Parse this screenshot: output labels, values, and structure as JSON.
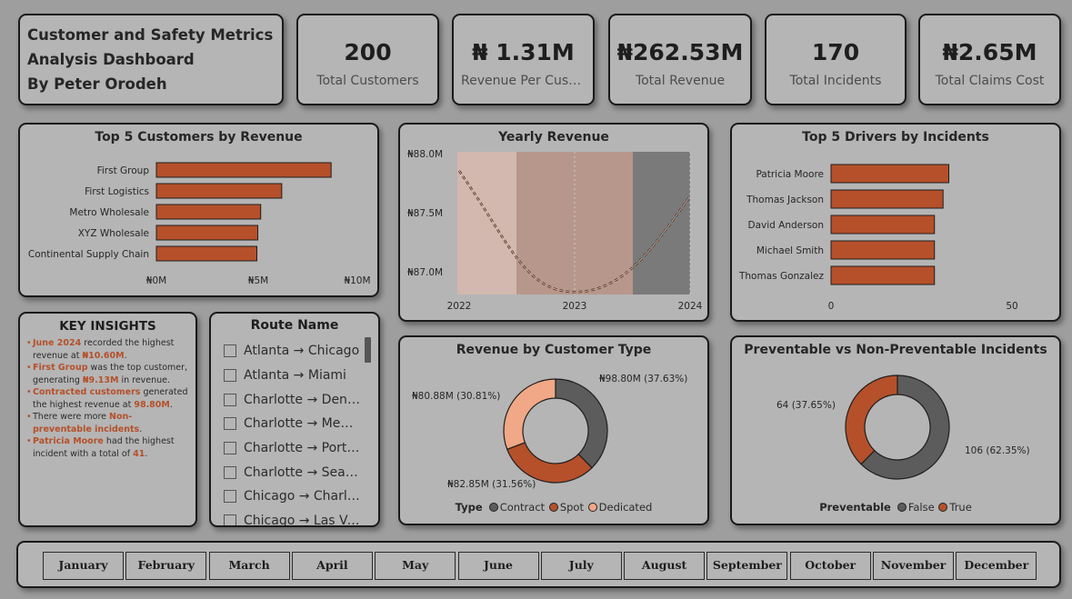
{
  "header": {
    "title_line1": "Customer and Safety Metrics",
    "title_line2": "Analysis Dashboard",
    "title_line3": "By Peter Orodeh"
  },
  "kpis": [
    {
      "value": "200",
      "label": "Total Customers"
    },
    {
      "value": "₦ 1.31M",
      "label": "Revenue Per Custo..."
    },
    {
      "value": "₦262.53M",
      "label": "Total Revenue"
    },
    {
      "value": "170",
      "label": "Total Incidents"
    },
    {
      "value": "₦2.65M",
      "label": "Total Claims Cost"
    }
  ],
  "top_customers": {
    "title": "Top 5 Customers by Revenue",
    "ticks": [
      "₦0M",
      "₦5M",
      "₦10M"
    ]
  },
  "yearly": {
    "title": "Yearly Revenue",
    "yticks": [
      "₦88.0M",
      "₦87.5M",
      "₦87.0M"
    ],
    "xticks": [
      "2022",
      "2023",
      "2024"
    ]
  },
  "top_drivers": {
    "title": "Top 5 Drivers by Incidents",
    "ticks": [
      "0",
      "50"
    ]
  },
  "insights": {
    "title": "KEY INSIGHTS",
    "items": [
      {
        "hl1": "June 2024",
        "t1": " recorded the highest revenue at ",
        "hl2": "₦10.60M",
        "t2": "."
      },
      {
        "hl1": "First Group",
        "t1": " was the top customer, generating ",
        "hl2": "₦9.13M",
        "t2": " in revenue."
      },
      {
        "hl1": "Contracted customers",
        "t1": " generated the highest revenue at ",
        "hl2": "98.80M",
        "t2": "."
      },
      {
        "hl1": "",
        "t1": "There were more ",
        "hl2": "Non-preventable incidents",
        "t2": "."
      },
      {
        "hl1": "Patricia Moore",
        "t1": " had the highest incident with a total of ",
        "hl2": "41",
        "t2": "."
      }
    ]
  },
  "routes": {
    "title": "Route Name",
    "items": [
      "Atlanta → Chicago",
      "Atlanta → Miami",
      "Charlotte → Denver",
      "Charlotte → Memp...",
      "Charlotte → Portland",
      "Charlotte → Seattle",
      "Chicago → Charlotte",
      "Chicago → Las Vegas"
    ]
  },
  "revenue_type": {
    "title": "Revenue by Customer Type",
    "legend_title": "Type",
    "labels": [
      "₦98.80M (37.63%)",
      "₦82.85M (31.56%)",
      "₦80.88M (30.81%)"
    ]
  },
  "preventable": {
    "title": "Preventable vs Non-Preventable Incidents",
    "legend_title": "Preventable",
    "labels": [
      "106 (62.35%)",
      "64 (37.65%)"
    ]
  },
  "months": [
    "January",
    "February",
    "March",
    "April",
    "May",
    "June",
    "July",
    "August",
    "September",
    "October",
    "November",
    "December"
  ],
  "colors": {
    "accent": "#b5502a",
    "dark": "#5c5c5c",
    "light": "#f0a886",
    "card": "#b5b5b5",
    "page": "#9e9e9e"
  },
  "chart_data": [
    {
      "type": "bar",
      "orientation": "horizontal",
      "title": "Top 5 Customers by Revenue",
      "categories": [
        "First Group",
        "First Logistics",
        "Metro Wholesale",
        "XYZ Wholesale",
        "Continental Supply Chain"
      ],
      "values": [
        9.13,
        6.55,
        5.45,
        5.3,
        5.25
      ],
      "xlim": [
        0,
        10.5
      ],
      "unit": "₦M"
    },
    {
      "type": "line",
      "title": "Yearly Revenue",
      "x": [
        "2022",
        "2023",
        "2024"
      ],
      "values": [
        87.9,
        86.95,
        87.7
      ],
      "ylim": [
        86.93,
        88.05
      ],
      "unit": "₦M"
    },
    {
      "type": "bar",
      "orientation": "horizontal",
      "title": "Top 5 Drivers by Incidents",
      "categories": [
        "Patricia Moore",
        "Thomas Jackson",
        "David Anderson",
        "Michael Smith",
        "Thomas Gonzalez"
      ],
      "values": [
        41,
        39,
        36,
        36,
        36
      ],
      "xlim": [
        0,
        63
      ]
    },
    {
      "type": "pie",
      "title": "Revenue by Customer Type",
      "series": [
        {
          "name": "Contract",
          "value": 98.8,
          "percent": 37.63,
          "color": "#5c5c5c"
        },
        {
          "name": "Spot",
          "value": 82.85,
          "percent": 31.56,
          "color": "#b5502a"
        },
        {
          "name": "Dedicated",
          "value": 80.88,
          "percent": 30.81,
          "color": "#f0a886"
        }
      ]
    },
    {
      "type": "pie",
      "title": "Preventable vs Non-Preventable Incidents",
      "series": [
        {
          "name": "False",
          "value": 106,
          "percent": 62.35,
          "color": "#5c5c5c"
        },
        {
          "name": "True",
          "value": 64,
          "percent": 37.65,
          "color": "#b5502a"
        }
      ]
    }
  ]
}
